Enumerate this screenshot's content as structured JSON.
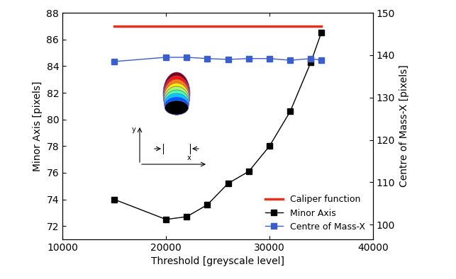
{
  "chart_data": {
    "type": "line",
    "xlabel": "Threshold [greyscale level]",
    "ylabel": "Minor Axis [pixels]",
    "y2label": "Centre of Mass-X [pixels]",
    "xlim": [
      10000,
      40000
    ],
    "xticks": [
      10000,
      20000,
      30000,
      40000
    ],
    "ylim": [
      71,
      88
    ],
    "yticks": [
      72,
      74,
      76,
      78,
      80,
      82,
      84,
      86,
      88
    ],
    "y2lim": [
      96.5,
      150
    ],
    "y2ticks": [
      100,
      110,
      120,
      130,
      140,
      150
    ],
    "legend": "lower right",
    "annotations": [
      "y",
      "x"
    ],
    "series": [
      {
        "name": "Caliper function",
        "color": "#e8311a",
        "marker": "none",
        "line_style": "solid",
        "x": [
          15000,
          35000
        ],
        "values": [
          87,
          87
        ]
      },
      {
        "name": "Minor Axis",
        "color": "#000000",
        "marker": "square",
        "line_style": "solid",
        "x": [
          15000,
          20000,
          22000,
          24000,
          26000,
          28000,
          30000,
          32000,
          34000,
          35000
        ],
        "values": [
          74.0,
          72.5,
          72.7,
          73.6,
          75.2,
          76.1,
          78.0,
          80.6,
          84.3,
          86.5
        ]
      },
      {
        "name": "Centre of Mass-X",
        "color": "#3a5fcd",
        "marker": "square",
        "line_style": "solid",
        "axis": "y2",
        "x": [
          15000,
          20000,
          22000,
          24000,
          26000,
          28000,
          30000,
          32000,
          34000,
          35000
        ],
        "values": [
          138.5,
          139.5,
          139.5,
          139.2,
          139.0,
          139.2,
          139.2,
          138.8,
          139.2,
          138.8
        ]
      }
    ]
  }
}
